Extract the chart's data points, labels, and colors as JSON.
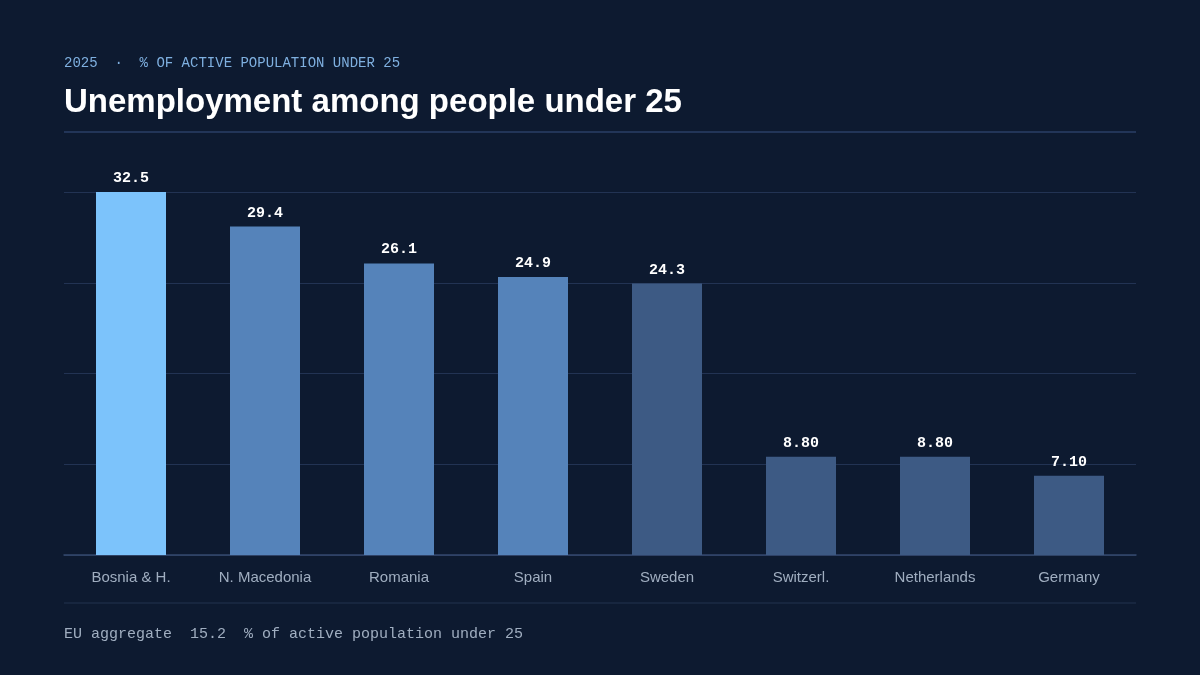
{
  "chart_data": {
    "type": "bar",
    "subtitle": "2025  ·  % OF ACTIVE POPULATION UNDER 25",
    "title": "Unemployment among people under 25",
    "categories": [
      "Bosnia & H.",
      "N. Macedonia",
      "Romania",
      "Spain",
      "Sweden",
      "Switzerl.",
      "Netherlands",
      "Germany"
    ],
    "values": [
      32.5,
      29.4,
      26.1,
      24.9,
      24.3,
      8.8,
      8.8,
      7.1
    ],
    "value_labels": [
      "32.5",
      "29.4",
      "26.1",
      "24.9",
      "24.3",
      "8.80",
      "8.80",
      "7.10"
    ],
    "colors": [
      "#7cc3fb",
      "#5583ba",
      "#5583ba",
      "#5583ba",
      "#3d5a84",
      "#3d5a84",
      "#3d5a84",
      "#3d5a84"
    ],
    "ylim": [
      0,
      32.5
    ],
    "yticks": [
      {
        "value": 0,
        "label": null
      },
      {
        "value": 8.125,
        "label": null
      },
      {
        "value": 16.25,
        "label": null
      },
      {
        "value": 24.375,
        "label": null
      },
      {
        "value": 32.5,
        "label": null
      }
    ],
    "tick_labels": "x",
    "grid": "y",
    "annotations": [
      "EU aggregate  15.2  % of active population under 25"
    ]
  }
}
